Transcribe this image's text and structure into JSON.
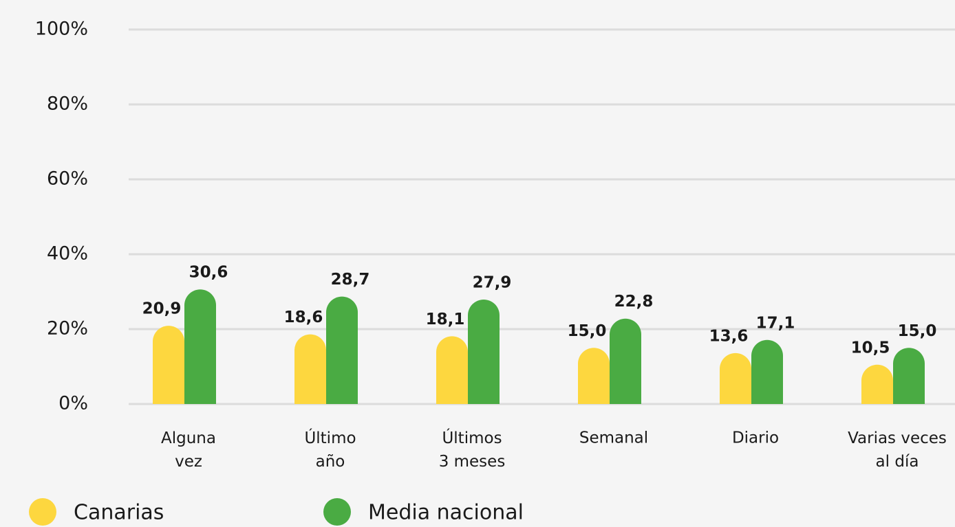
{
  "chart_data": {
    "type": "bar",
    "categories": [
      "Alguna\nvez",
      "Último\naño",
      "Últimos\n3 meses",
      "Semanal",
      "Diario",
      "Varias veces\nal día"
    ],
    "series": [
      {
        "name": "Canarias",
        "color": "#fdd73f",
        "values": [
          20.9,
          18.6,
          18.1,
          15.0,
          13.6,
          10.5
        ],
        "value_labels": [
          "20,9",
          "18,6",
          "18,1",
          "15,0",
          "13,6",
          "10,5"
        ]
      },
      {
        "name": "Media nacional",
        "color": "#4aab43",
        "values": [
          30.6,
          28.7,
          27.9,
          22.8,
          17.1,
          15.0
        ],
        "value_labels": [
          "30,6",
          "28,7",
          "27,9",
          "22,8",
          "17,1",
          "15,0"
        ]
      }
    ],
    "ylim": [
      0,
      100
    ],
    "yticks": [
      {
        "value": 0,
        "label": "0%"
      },
      {
        "value": 20,
        "label": "20%"
      },
      {
        "value": 40,
        "label": "40%"
      },
      {
        "value": 60,
        "label": "60%"
      },
      {
        "value": 80,
        "label": "80%"
      },
      {
        "value": 100,
        "label": "100%"
      }
    ],
    "grid": true,
    "legend": "bottom-left"
  }
}
